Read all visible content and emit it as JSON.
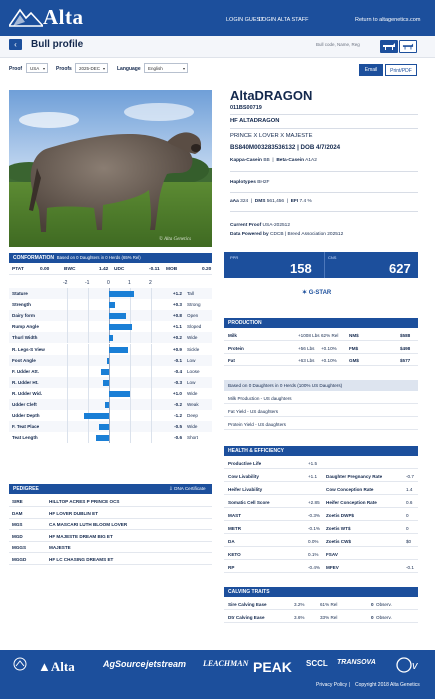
{
  "header": {
    "brand": "Alta",
    "links": [
      "LOGIN GUEST",
      "LOGIN ALTA STAFF"
    ],
    "return_link": "Return to altagenetics.com"
  },
  "page": {
    "title": "Bull profile",
    "back_icon": "‹",
    "search_placeholder": "Bull code, Name, Reg"
  },
  "filters": {
    "proof_label": "Proof",
    "proof_value": "USA",
    "proofs_label": "Proofs",
    "proofs_value": "2025-DEC",
    "language_label": "Language",
    "language_value": "English",
    "email_label": "Email",
    "print_label": "Print/PDF"
  },
  "bull": {
    "name": "AltaDRAGON",
    "code": "011BS00719",
    "reg_name": "HF ALTADRAGON",
    "pedigree_line": "PRINCE X LOVER X MAJESTE",
    "id_line": "BS840M003283536132 | DOB 4/7/2024",
    "kappa_label": "Kappa-Casein",
    "kappa_value": "BB",
    "beta_label": "Beta-Casein",
    "beta_value": "A1A2",
    "haplotypes_label": "Haplotypes",
    "haplotypes_value": "BH2F",
    "aaa_label": "aAa",
    "aaa_value": "324",
    "dms_label": "DMS",
    "dms_value": "561,456",
    "efi_label": "EFI",
    "efi_value": "7.4 %",
    "current_proof_label": "Current Proof",
    "current_proof_value": "USA-202512",
    "data_label": "Data Powered by",
    "data_value": "CDCB | Breed Association 202512",
    "photo_signature": "© Alta Genetics"
  },
  "stats": {
    "ppr_label": "PPR",
    "ppr_value": "158",
    "cns_label": "CNS",
    "cns_value": "627",
    "gstar": "G-STAR"
  },
  "conformation": {
    "title": "CONFORMATION",
    "subtitle": "Based on 0 Daughters in 0 Herds (65% Rel)",
    "summary": {
      "ptat_label": "PTAT",
      "ptat_value": "0.00",
      "bwc_label": "BWC",
      "bwc_value": "1.42",
      "udc_label": "UDC",
      "udc_value": "-0.11",
      "mob_label": "MOB",
      "mob_value": "0.20"
    },
    "scale": [
      "-2",
      "-1",
      "0",
      "1",
      "2"
    ],
    "traits": [
      {
        "name": "Stature",
        "value": "+1.2",
        "num": 1.2,
        "desc": "Tall"
      },
      {
        "name": "Strength",
        "value": "+0.3",
        "num": 0.3,
        "desc": "Strong"
      },
      {
        "name": "Dairy form",
        "value": "+0.8",
        "num": 0.8,
        "desc": "Open"
      },
      {
        "name": "Rump Angle",
        "value": "+1.1",
        "num": 1.1,
        "desc": "Sloped"
      },
      {
        "name": "Thurl Width",
        "value": "+0.2",
        "num": 0.2,
        "desc": "Wide"
      },
      {
        "name": "R. Legs-S View",
        "value": "+0.9",
        "num": 0.9,
        "desc": "Sickle"
      },
      {
        "name": "Foot Angle",
        "value": "-0.1",
        "num": -0.1,
        "desc": "Low"
      },
      {
        "name": "F. Udder Att.",
        "value": "-0.4",
        "num": -0.4,
        "desc": "Loose"
      },
      {
        "name": "R. Udder Ht.",
        "value": "-0.3",
        "num": -0.3,
        "desc": "Low"
      },
      {
        "name": "R. Udder Wid.",
        "value": "+1.0",
        "num": 1.0,
        "desc": "Wide"
      },
      {
        "name": "Udder Cleft",
        "value": "-0.2",
        "num": -0.2,
        "desc": "Weak"
      },
      {
        "name": "Udder Depth",
        "value": "-1.2",
        "num": -1.2,
        "desc": "Deep"
      },
      {
        "name": "F. Teat Place",
        "value": "-0.5",
        "num": -0.5,
        "desc": "Wide"
      },
      {
        "name": "Teat Length",
        "value": "-0.6",
        "num": -0.6,
        "desc": "Short"
      }
    ]
  },
  "production": {
    "title": "PRODUCTION",
    "rows": [
      {
        "trait": "Milk",
        "lbs": "+1008 Lbs",
        "rel": "62% Rel",
        "idx_label": "NM$",
        "idx_value": "$588"
      },
      {
        "trait": "Protein",
        "lbs": "+56 Lbs",
        "rel": "+0.10%",
        "idx_label": "FM$",
        "idx_value": "$498"
      },
      {
        "trait": "Fat",
        "lbs": "+63 Lbs",
        "rel": "+0.10%",
        "idx_label": "GM$",
        "idx_value": "$577"
      }
    ],
    "daughters_note": "Based on 0 Daughters in 0 Herds (100% US Daughters)",
    "notes": [
      "Milk Production - US daughters",
      "Fat Yield - US daughters",
      "Protein Yield - US daughters"
    ]
  },
  "health": {
    "title": "HEALTH & EFFICIENCY",
    "left": [
      {
        "label": "Productive Life",
        "value": "+1.5"
      },
      {
        "label": "Cow Livability",
        "value": "+1.1"
      },
      {
        "label": "Heifer Livability",
        "value": ""
      },
      {
        "label": "Somatic Cell Score",
        "value": "+2.85"
      },
      {
        "label": "MAST",
        "value": "-0.3%"
      },
      {
        "label": "METR",
        "value": "-0.1%"
      },
      {
        "label": "DA",
        "value": "0.0%"
      },
      {
        "label": "KETO",
        "value": "0.1%"
      },
      {
        "label": "RP",
        "value": "-0.4%"
      }
    ],
    "right": [
      {
        "label": "",
        "value": ""
      },
      {
        "label": "Daughter Pregnancy Rate",
        "value": "-0.7"
      },
      {
        "label": "Cow Conception Rate",
        "value": "1.4"
      },
      {
        "label": "Heifer Conception Rate",
        "value": "0.6"
      },
      {
        "label": "Zoetis DWP$",
        "value": "0"
      },
      {
        "label": "Zoetis WT$",
        "value": "0"
      },
      {
        "label": "Zoetis CW$",
        "value": "$0"
      },
      {
        "label": "FSAV",
        "value": ""
      },
      {
        "label": "MFEV",
        "value": "-0.1"
      }
    ]
  },
  "calving": {
    "title": "CALVING TRAITS",
    "rows": [
      {
        "label": "Sire Calving Ease",
        "pct": "3.2%",
        "rel": "61% Rel",
        "obs": "0",
        "obs_label": "Observ."
      },
      {
        "label": "Dtr Calving Ease",
        "pct": "3.6%",
        "rel": "33% Rel",
        "obs": "0",
        "obs_label": "Observ."
      }
    ]
  },
  "pedigree": {
    "title": "PEDIGREE",
    "dna_link": "DNA Certificate",
    "rows": [
      {
        "rel": "SIRE",
        "name": "HILLTOP ACRES P PRINCE OCS"
      },
      {
        "rel": "DAM",
        "name": "HF LOVER DUBLIN ET"
      },
      {
        "rel": "MGS",
        "name": "CA MASCARI LUTH BLOOM LOVER"
      },
      {
        "rel": "MGD",
        "name": "HF MAJESTE DREAM BIG ET"
      },
      {
        "rel": "MGGS",
        "name": "MAJESTE"
      },
      {
        "rel": "MGGD",
        "name": "HF LC CHASING DREAMS ET"
      }
    ]
  },
  "footer": {
    "partners": [
      "Alta",
      "AgSource",
      "jetstream",
      "LEACHMAN",
      "PEAK",
      "SCCL",
      "TRANSOVA"
    ],
    "privacy": "Privacy Policy",
    "copyright": "Copyright 2018 Alta Genetics"
  },
  "colors": {
    "primary": "#1c4f9c",
    "bar": "#1a7fd6"
  }
}
